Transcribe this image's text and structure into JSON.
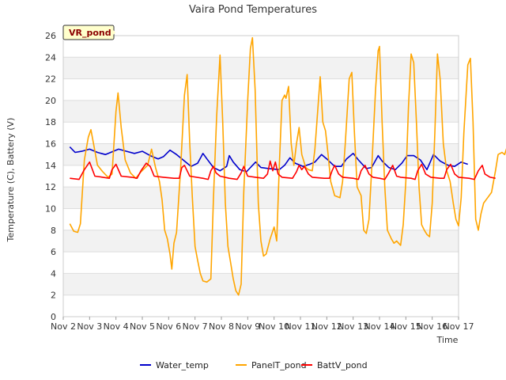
{
  "chart_data": {
    "type": "line",
    "title": "Vaira Pond Temperatures",
    "xlabel": "Time",
    "ylabel": "Temperature (C), Battery (V)",
    "site_tag": "VR_pond",
    "x_ticks": [
      "Nov 2",
      "Nov 3",
      "Nov 4",
      "Nov 5",
      "Nov 6",
      "Nov 7",
      "Nov 8",
      "Nov 9",
      "Nov 10",
      "Nov 11",
      "Nov 12",
      "Nov 13",
      "Nov 14",
      "Nov 15",
      "Nov 16",
      "Nov 17"
    ],
    "xlim": [
      "Nov 2",
      "Nov 17"
    ],
    "y_ticks": [
      0,
      2,
      4,
      6,
      8,
      10,
      12,
      14,
      16,
      18,
      20,
      22,
      24,
      26
    ],
    "ylim": [
      0,
      26
    ],
    "grid": "horizontal bands",
    "legend_position": "bottom",
    "x_unit": "days since Nov 2",
    "series": [
      {
        "name": "Water_temp",
        "color": "#0000cc",
        "points": [
          [
            0.25,
            15.7
          ],
          [
            0.45,
            15.2
          ],
          [
            0.7,
            15.3
          ],
          [
            1.0,
            15.5
          ],
          [
            1.3,
            15.2
          ],
          [
            1.6,
            15.0
          ],
          [
            1.9,
            15.3
          ],
          [
            2.1,
            15.5
          ],
          [
            2.4,
            15.3
          ],
          [
            2.7,
            15.1
          ],
          [
            3.0,
            15.3
          ],
          [
            3.3,
            14.9
          ],
          [
            3.6,
            14.6
          ],
          [
            3.8,
            14.8
          ],
          [
            4.05,
            15.4
          ],
          [
            4.3,
            15.0
          ],
          [
            4.6,
            14.4
          ],
          [
            4.85,
            13.9
          ],
          [
            5.1,
            14.2
          ],
          [
            5.3,
            15.1
          ],
          [
            5.45,
            14.6
          ],
          [
            5.7,
            13.8
          ],
          [
            5.95,
            13.5
          ],
          [
            6.2,
            13.9
          ],
          [
            6.3,
            14.9
          ],
          [
            6.45,
            14.3
          ],
          [
            6.7,
            13.6
          ],
          [
            6.95,
            13.4
          ],
          [
            7.3,
            14.3
          ],
          [
            7.5,
            13.8
          ],
          [
            7.8,
            13.7
          ],
          [
            8.2,
            13.6
          ],
          [
            8.4,
            14.0
          ],
          [
            8.6,
            14.7
          ],
          [
            8.8,
            14.2
          ],
          [
            9.1,
            13.9
          ],
          [
            9.35,
            14.1
          ],
          [
            9.55,
            14.3
          ],
          [
            9.8,
            15.0
          ],
          [
            10.0,
            14.6
          ],
          [
            10.3,
            13.9
          ],
          [
            10.55,
            13.9
          ],
          [
            10.75,
            14.6
          ],
          [
            11.0,
            15.1
          ],
          [
            11.2,
            14.5
          ],
          [
            11.5,
            13.7
          ],
          [
            11.7,
            13.8
          ],
          [
            11.95,
            14.9
          ],
          [
            12.1,
            14.4
          ],
          [
            12.35,
            13.8
          ],
          [
            12.6,
            13.6
          ],
          [
            12.85,
            14.2
          ],
          [
            13.05,
            14.9
          ],
          [
            13.3,
            14.9
          ],
          [
            13.55,
            14.5
          ],
          [
            13.8,
            13.6
          ],
          [
            14.05,
            15.0
          ],
          [
            14.3,
            14.4
          ],
          [
            14.6,
            14.0
          ],
          [
            14.85,
            13.9
          ],
          [
            15.1,
            14.3
          ],
          [
            15.35,
            14.1
          ]
        ]
      },
      {
        "name": "PanelT_pond",
        "color": "#ffa500",
        "points": [
          [
            0.25,
            8.6
          ],
          [
            0.4,
            7.9
          ],
          [
            0.55,
            7.8
          ],
          [
            0.65,
            8.6
          ],
          [
            0.8,
            14.5
          ],
          [
            0.95,
            16.6
          ],
          [
            1.05,
            17.3
          ],
          [
            1.15,
            16.0
          ],
          [
            1.3,
            14.0
          ],
          [
            1.5,
            13.4
          ],
          [
            1.7,
            12.9
          ],
          [
            1.85,
            13.2
          ],
          [
            2.0,
            19.0
          ],
          [
            2.08,
            20.7
          ],
          [
            2.2,
            17.5
          ],
          [
            2.35,
            14.5
          ],
          [
            2.55,
            13.3
          ],
          [
            2.75,
            12.8
          ],
          [
            2.95,
            13.4
          ],
          [
            3.2,
            14.0
          ],
          [
            3.35,
            15.5
          ],
          [
            3.5,
            13.8
          ],
          [
            3.65,
            12.5
          ],
          [
            3.75,
            10.8
          ],
          [
            3.85,
            8.0
          ],
          [
            3.95,
            7.2
          ],
          [
            4.05,
            5.8
          ],
          [
            4.12,
            4.4
          ],
          [
            4.2,
            6.8
          ],
          [
            4.3,
            7.8
          ],
          [
            4.45,
            13.5
          ],
          [
            4.6,
            20.5
          ],
          [
            4.7,
            22.4
          ],
          [
            4.8,
            16.0
          ],
          [
            4.9,
            11.0
          ],
          [
            5.0,
            6.5
          ],
          [
            5.1,
            5.2
          ],
          [
            5.2,
            4.0
          ],
          [
            5.3,
            3.3
          ],
          [
            5.45,
            3.2
          ],
          [
            5.6,
            3.5
          ],
          [
            5.7,
            11.0
          ],
          [
            5.82,
            18.5
          ],
          [
            5.95,
            24.2
          ],
          [
            6.05,
            18.0
          ],
          [
            6.15,
            10.5
          ],
          [
            6.25,
            6.5
          ],
          [
            6.35,
            5.0
          ],
          [
            6.45,
            3.5
          ],
          [
            6.55,
            2.4
          ],
          [
            6.65,
            2.0
          ],
          [
            6.75,
            3.0
          ],
          [
            6.85,
            11.5
          ],
          [
            7.0,
            20.0
          ],
          [
            7.1,
            24.8
          ],
          [
            7.18,
            25.8
          ],
          [
            7.28,
            21.0
          ],
          [
            7.4,
            10.5
          ],
          [
            7.5,
            7.0
          ],
          [
            7.6,
            5.6
          ],
          [
            7.7,
            5.8
          ],
          [
            7.85,
            7.2
          ],
          [
            8.0,
            8.3
          ],
          [
            8.1,
            7.0
          ],
          [
            8.2,
            14.0
          ],
          [
            8.3,
            20.0
          ],
          [
            8.4,
            20.5
          ],
          [
            8.45,
            20.2
          ],
          [
            8.55,
            21.3
          ],
          [
            8.65,
            16.0
          ],
          [
            8.75,
            14.0
          ],
          [
            8.85,
            16.0
          ],
          [
            8.95,
            17.5
          ],
          [
            9.05,
            15.0
          ],
          [
            9.2,
            13.8
          ],
          [
            9.3,
            13.6
          ],
          [
            9.45,
            13.5
          ],
          [
            9.55,
            15.5
          ],
          [
            9.7,
            20.5
          ],
          [
            9.75,
            22.2
          ],
          [
            9.85,
            18.0
          ],
          [
            9.95,
            17.2
          ],
          [
            10.05,
            15.0
          ],
          [
            10.15,
            12.5
          ],
          [
            10.3,
            11.2
          ],
          [
            10.5,
            11.0
          ],
          [
            10.6,
            12.5
          ],
          [
            10.7,
            16.0
          ],
          [
            10.85,
            22.0
          ],
          [
            10.95,
            22.6
          ],
          [
            11.05,
            17.0
          ],
          [
            11.15,
            12.0
          ],
          [
            11.3,
            11.2
          ],
          [
            11.4,
            8.0
          ],
          [
            11.5,
            7.7
          ],
          [
            11.6,
            9.0
          ],
          [
            11.7,
            13.5
          ],
          [
            11.85,
            21.0
          ],
          [
            11.95,
            24.6
          ],
          [
            12.0,
            25.0
          ],
          [
            12.1,
            18.0
          ],
          [
            12.2,
            12.0
          ],
          [
            12.3,
            8.0
          ],
          [
            12.45,
            7.2
          ],
          [
            12.55,
            6.8
          ],
          [
            12.65,
            7.0
          ],
          [
            12.8,
            6.6
          ],
          [
            12.9,
            8.5
          ],
          [
            13.0,
            12.5
          ],
          [
            13.1,
            19.5
          ],
          [
            13.2,
            24.3
          ],
          [
            13.3,
            23.5
          ],
          [
            13.4,
            18.0
          ],
          [
            13.5,
            12.0
          ],
          [
            13.6,
            8.5
          ],
          [
            13.7,
            8.0
          ],
          [
            13.8,
            7.6
          ],
          [
            13.9,
            7.4
          ],
          [
            14.0,
            10.5
          ],
          [
            14.1,
            17.0
          ],
          [
            14.2,
            24.3
          ],
          [
            14.3,
            22.0
          ],
          [
            14.42,
            16.0
          ],
          [
            14.55,
            13.5
          ],
          [
            14.68,
            12.5
          ],
          [
            14.8,
            10.5
          ],
          [
            14.9,
            9.0
          ],
          [
            15.0,
            8.4
          ],
          [
            15.1,
            11.0
          ],
          [
            15.2,
            17.0
          ],
          [
            15.35,
            23.3
          ],
          [
            15.45,
            23.9
          ],
          [
            15.55,
            18.0
          ],
          [
            15.65,
            9.0
          ],
          [
            15.75,
            8.0
          ],
          [
            15.85,
            9.5
          ],
          [
            15.95,
            10.5
          ],
          [
            16.1,
            11.0
          ],
          [
            16.25,
            11.5
          ],
          [
            16.4,
            13.5
          ],
          [
            16.5,
            15.0
          ],
          [
            16.65,
            15.2
          ],
          [
            16.75,
            15.0
          ],
          [
            16.85,
            15.8
          ],
          [
            16.95,
            17.2
          ],
          [
            17.05,
            16.0
          ],
          [
            17.15,
            14.2
          ]
        ]
      },
      {
        "name": "BattV_pond",
        "color": "#ff0000",
        "points": [
          [
            0.25,
            12.8
          ],
          [
            0.6,
            12.7
          ],
          [
            0.8,
            13.6
          ],
          [
            1.0,
            14.3
          ],
          [
            1.2,
            13.0
          ],
          [
            1.5,
            12.9
          ],
          [
            1.75,
            12.8
          ],
          [
            1.85,
            13.6
          ],
          [
            2.0,
            14.1
          ],
          [
            2.2,
            13.0
          ],
          [
            2.6,
            12.9
          ],
          [
            2.8,
            12.8
          ],
          [
            2.95,
            13.5
          ],
          [
            3.15,
            14.2
          ],
          [
            3.3,
            13.9
          ],
          [
            3.45,
            13.0
          ],
          [
            3.8,
            12.9
          ],
          [
            4.2,
            12.8
          ],
          [
            4.4,
            12.8
          ],
          [
            4.5,
            13.8
          ],
          [
            4.6,
            14.0
          ],
          [
            4.7,
            13.5
          ],
          [
            4.8,
            13.0
          ],
          [
            5.3,
            12.8
          ],
          [
            5.5,
            12.7
          ],
          [
            5.6,
            13.5
          ],
          [
            5.7,
            13.9
          ],
          [
            5.8,
            13.3
          ],
          [
            5.95,
            13.0
          ],
          [
            6.3,
            12.8
          ],
          [
            6.6,
            12.7
          ],
          [
            6.75,
            13.3
          ],
          [
            6.85,
            13.9
          ],
          [
            7.0,
            13.0
          ],
          [
            7.3,
            12.9
          ],
          [
            7.6,
            12.8
          ],
          [
            7.75,
            13.2
          ],
          [
            7.85,
            14.4
          ],
          [
            7.95,
            13.5
          ],
          [
            8.05,
            14.3
          ],
          [
            8.15,
            13.2
          ],
          [
            8.3,
            12.9
          ],
          [
            8.7,
            12.8
          ],
          [
            8.85,
            13.4
          ],
          [
            8.95,
            14.0
          ],
          [
            9.05,
            13.6
          ],
          [
            9.15,
            13.9
          ],
          [
            9.3,
            13.2
          ],
          [
            9.45,
            12.9
          ],
          [
            9.9,
            12.8
          ],
          [
            10.1,
            12.8
          ],
          [
            10.2,
            13.5
          ],
          [
            10.3,
            14.0
          ],
          [
            10.45,
            13.2
          ],
          [
            10.6,
            12.9
          ],
          [
            11.0,
            12.8
          ],
          [
            11.2,
            12.7
          ],
          [
            11.3,
            13.5
          ],
          [
            11.45,
            14.0
          ],
          [
            11.6,
            13.2
          ],
          [
            11.75,
            12.9
          ],
          [
            12.0,
            12.8
          ],
          [
            12.2,
            12.7
          ],
          [
            12.35,
            13.3
          ],
          [
            12.5,
            14.0
          ],
          [
            12.65,
            13.0
          ],
          [
            12.8,
            12.9
          ],
          [
            13.2,
            12.8
          ],
          [
            13.35,
            12.7
          ],
          [
            13.45,
            13.5
          ],
          [
            13.6,
            14.1
          ],
          [
            13.75,
            13.2
          ],
          [
            13.95,
            12.9
          ],
          [
            14.3,
            12.8
          ],
          [
            14.45,
            12.8
          ],
          [
            14.55,
            13.6
          ],
          [
            14.7,
            14.1
          ],
          [
            14.85,
            13.2
          ],
          [
            15.0,
            12.9
          ],
          [
            15.4,
            12.8
          ],
          [
            15.6,
            12.7
          ],
          [
            15.75,
            13.5
          ],
          [
            15.9,
            14.0
          ],
          [
            16.0,
            13.2
          ],
          [
            16.2,
            12.9
          ],
          [
            16.4,
            12.8
          ]
        ]
      }
    ]
  }
}
